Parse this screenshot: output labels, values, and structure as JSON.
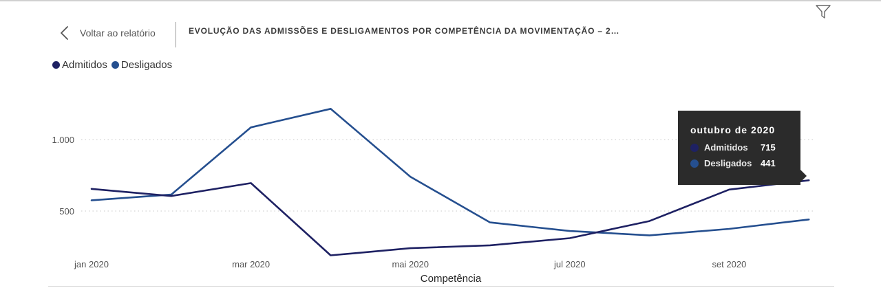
{
  "header": {
    "back_label": "Voltar ao relatório",
    "title": "EVOLUÇÃO DAS ADMISSÕES E DESLIGAMENTOS POR COMPETÊNCIA DA MOVIMENTAÇÃO – 2…"
  },
  "icons": {
    "back": "chevron-left-icon",
    "filter": "filter-icon"
  },
  "colors": {
    "admitidos": "#1e2163",
    "desligados": "#254f8f",
    "grid": "#c8c8c8",
    "tooltip_bg": "#2b2b2b"
  },
  "legend": {
    "items": [
      {
        "label": "Admitidos",
        "color": "#1e2163"
      },
      {
        "label": "Desligados",
        "color": "#254f8f"
      }
    ]
  },
  "tooltip": {
    "title": "outubro de 2020",
    "rows": [
      {
        "label": "Admitidos",
        "value": "715",
        "color": "#1e2163"
      },
      {
        "label": "Desligados",
        "value": "441",
        "color": "#254f8f"
      }
    ]
  },
  "chart_data": {
    "type": "line",
    "title": "",
    "xlabel": "Competência",
    "ylabel": "",
    "categories": [
      "jan 2020",
      "fev 2020",
      "mar 2020",
      "abr 2020",
      "mai 2020",
      "jun 2020",
      "jul 2020",
      "ago 2020",
      "set 2020",
      "out 2020"
    ],
    "x_tick_labels": [
      "jan 2020",
      "mar 2020",
      "mai 2020",
      "jul 2020",
      "set 2020"
    ],
    "y_ticks": [
      500,
      1000
    ],
    "y_tick_labels": [
      "500",
      "1.000"
    ],
    "ylim": [
      200,
      1450
    ],
    "grid": true,
    "legend_position": "top-left",
    "series": [
      {
        "name": "Admitidos",
        "values": [
          655,
          605,
          695,
          190,
          240,
          260,
          310,
          430,
          650,
          715
        ]
      },
      {
        "name": "Desligados",
        "values": [
          575,
          615,
          1085,
          1215,
          740,
          420,
          360,
          330,
          375,
          441
        ]
      }
    ]
  }
}
